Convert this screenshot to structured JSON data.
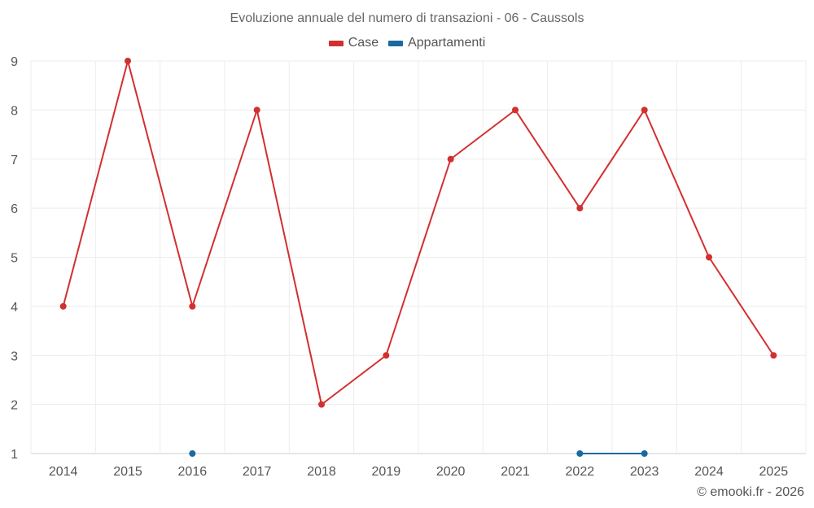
{
  "chart_data": {
    "type": "line",
    "title": "Evoluzione annuale del numero di transazioni - 06 - Caussols",
    "xlabel": "",
    "ylabel": "",
    "categories": [
      "2014",
      "2015",
      "2016",
      "2017",
      "2018",
      "2019",
      "2020",
      "2021",
      "2022",
      "2023",
      "2024",
      "2025"
    ],
    "ylim": [
      1,
      9
    ],
    "yticks": [
      1,
      2,
      3,
      4,
      5,
      6,
      7,
      8,
      9
    ],
    "grid": true,
    "legend_position": "top-center",
    "series": [
      {
        "name": "Case",
        "color": "#d32f2f",
        "values": [
          4,
          9,
          4,
          8,
          2,
          3,
          7,
          8,
          6,
          8,
          5,
          3
        ]
      },
      {
        "name": "Appartamenti",
        "color": "#1a6aa0",
        "values": [
          null,
          null,
          1,
          null,
          null,
          null,
          null,
          null,
          1,
          1,
          null,
          null
        ]
      }
    ]
  },
  "credit": "© emooki.fr - 2026"
}
